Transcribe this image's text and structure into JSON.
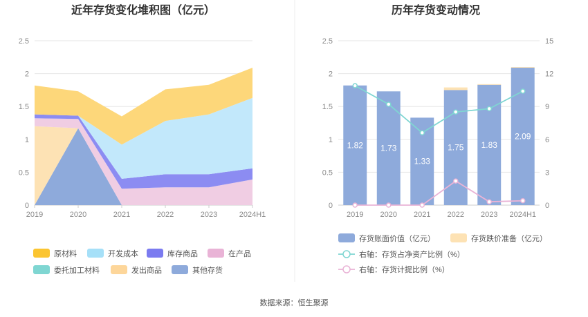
{
  "source": "数据来源：恒生聚源",
  "chart_data": [
    {
      "type": "area",
      "stacked": true,
      "title": "近年存货变化堆积图（亿元）",
      "categories": [
        "2019",
        "2020",
        "2021",
        "2022",
        "2023",
        "2024H1"
      ],
      "ylim": [
        0,
        2.5
      ],
      "yticks": [
        "0",
        "0.5",
        "1",
        "1.5",
        "2",
        "2.5"
      ],
      "grid": true,
      "legend_position": "bottom",
      "series": [
        {
          "name": "其他存货",
          "color": "#8eaadb",
          "values": [
            0,
            1.17,
            0,
            0,
            0,
            0
          ]
        },
        {
          "name": "发出商品",
          "color": "#fde2b4",
          "values": [
            1.2,
            0,
            0,
            0,
            0,
            0
          ]
        },
        {
          "name": "委托加工材料",
          "color": "#7fd6d2",
          "values": [
            0,
            0,
            0,
            0,
            0,
            0
          ]
        },
        {
          "name": "在产品",
          "color": "#f0cde3",
          "values": [
            0.12,
            0.14,
            0.25,
            0.27,
            0.27,
            0.39
          ]
        },
        {
          "name": "库存商品",
          "color": "#8c8cf2",
          "values": [
            0.06,
            0.05,
            0.15,
            0.2,
            0.2,
            0.17
          ]
        },
        {
          "name": "开发成本",
          "color": "#c2e8fb",
          "values": [
            0,
            0,
            0.52,
            0.81,
            0.91,
            1.07
          ]
        },
        {
          "name": "原材料",
          "color": "#fdd77a",
          "values": [
            0.44,
            0.37,
            0.43,
            0.48,
            0.45,
            0.46
          ]
        }
      ],
      "legend": [
        {
          "name": "原材料",
          "color": "#fbc531"
        },
        {
          "name": "开发成本",
          "color": "#a6e0f8"
        },
        {
          "name": "库存商品",
          "color": "#7b7bf0"
        },
        {
          "name": "在产品",
          "color": "#e9b3d6"
        },
        {
          "name": "委托加工材料",
          "color": "#7fd6d2"
        },
        {
          "name": "发出商品",
          "color": "#fdd69a"
        },
        {
          "name": "其他存货",
          "color": "#8eaadb"
        }
      ]
    },
    {
      "type": "bar+line",
      "title": "历年存货变动情况",
      "categories": [
        "2019",
        "2020",
        "2021",
        "2022",
        "2023",
        "2024H1"
      ],
      "ylim": [
        0,
        2.5
      ],
      "yticks": [
        "0",
        "0.5",
        "1",
        "1.5",
        "2",
        "2.5"
      ],
      "y2lim": [
        0,
        15
      ],
      "y2ticks": [
        "0",
        "3",
        "6",
        "9",
        "12",
        "15"
      ],
      "grid": true,
      "legend_position": "bottom",
      "bars": {
        "name": "存货账面价值（亿元）",
        "color": "#8eaadb",
        "values": [
          1.82,
          1.73,
          1.33,
          1.75,
          1.83,
          2.09
        ],
        "labels": [
          "1.82",
          "1.73",
          "1.33",
          "1.75",
          "1.83",
          "2.09"
        ]
      },
      "bars_stack": {
        "name": "存货跌价准备（亿元）",
        "color": "#fde2b4",
        "values": [
          0,
          0,
          0,
          0.04,
          0.01,
          0.01
        ]
      },
      "lines": [
        {
          "name": "右轴：存货占净资产比例（%）",
          "color": "#7fd6d2",
          "axis": "right",
          "values": [
            10.9,
            9.2,
            6.6,
            8.5,
            8.8,
            10.4
          ]
        },
        {
          "name": "右轴：存货计提比例（%）",
          "color": "#e9b3d6",
          "axis": "right",
          "values": [
            0,
            0,
            0,
            2.2,
            0.3,
            0.4
          ]
        }
      ]
    }
  ]
}
